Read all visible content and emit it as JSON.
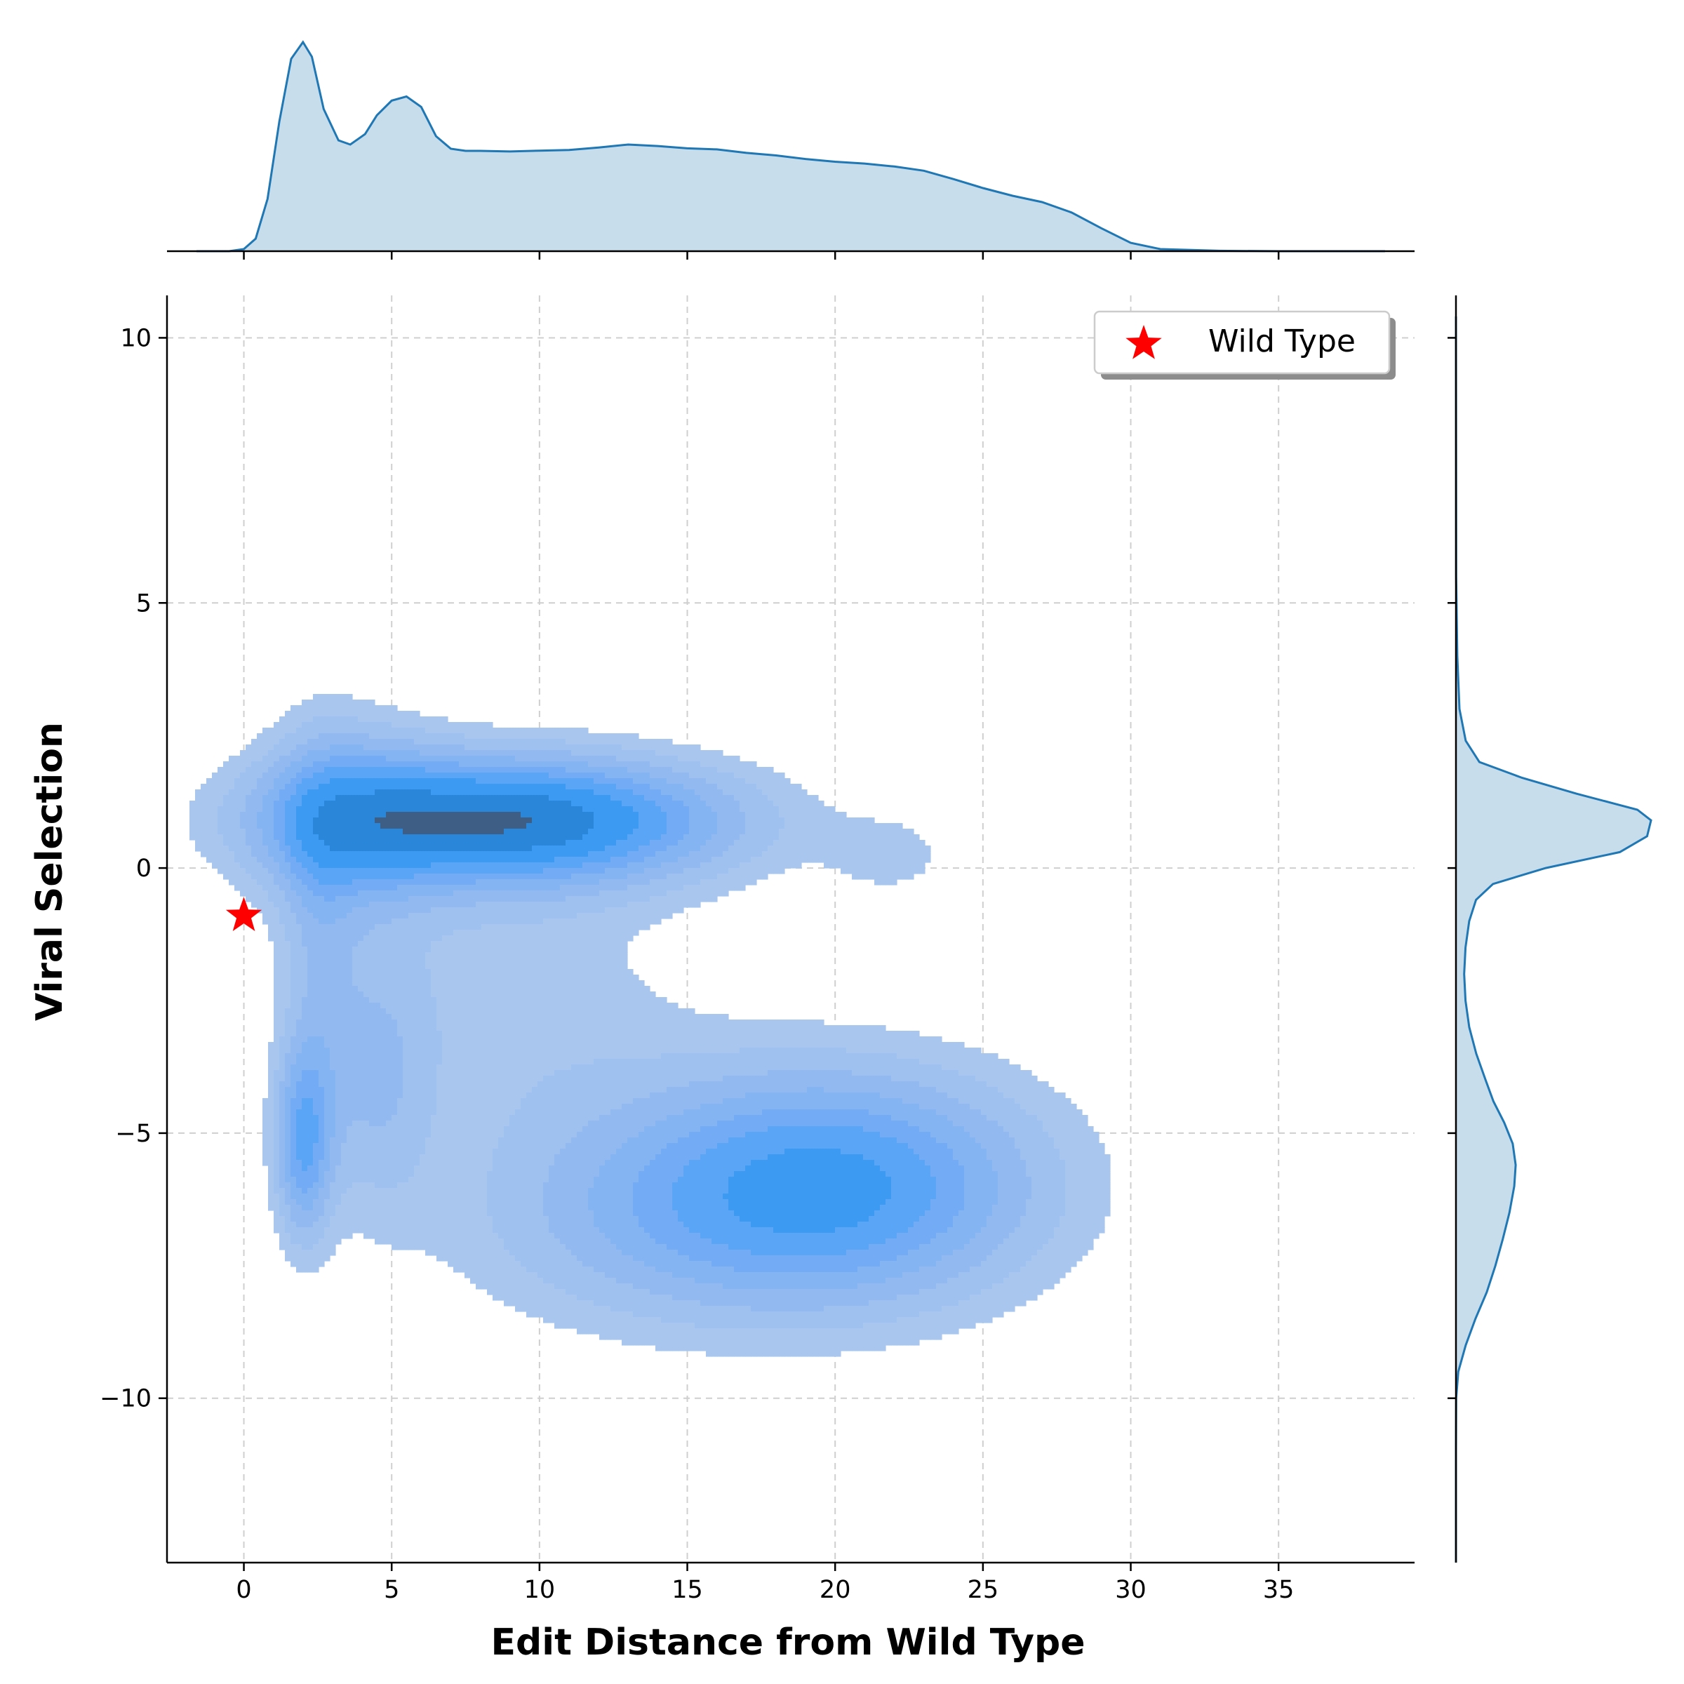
{
  "chart_data": {
    "type": "kde-joint",
    "xlabel": "Edit Distance from Wild Type",
    "ylabel": "Viral Selection",
    "xlim": [
      -2.6,
      39.6
    ],
    "ylim": [
      -13.1,
      10.8
    ],
    "x_ticks": [
      0,
      5,
      10,
      15,
      20,
      25,
      30,
      35
    ],
    "y_ticks": [
      -10,
      -5,
      0,
      5,
      10
    ],
    "x_tick_labels": [
      "0",
      "5",
      "10",
      "15",
      "20",
      "25",
      "30",
      "35"
    ],
    "y_tick_labels": [
      "−10",
      "−5",
      "0",
      "5",
      "10"
    ],
    "grid": true,
    "legend": {
      "placement": "top-right",
      "entries": [
        "Wild Type"
      ]
    },
    "wild_type_point": {
      "x": 0,
      "y": -0.9,
      "label": "Wild Type",
      "color": "#ff0000"
    },
    "kde_components": [
      {
        "x": 9,
        "y": 0.9,
        "sx": 5.2,
        "sy": 0.85,
        "w": 1.0
      },
      {
        "x": 3.5,
        "y": 1.0,
        "sx": 2.2,
        "sy": 1.4,
        "w": 0.35
      },
      {
        "x": 20,
        "y": -6.0,
        "sx": 5.0,
        "sy": 1.6,
        "w": 0.75
      },
      {
        "x": 2.0,
        "y": -5.2,
        "sx": 0.7,
        "sy": 1.3,
        "w": 0.55
      },
      {
        "x": 4.5,
        "y": -4.0,
        "sx": 1.3,
        "sy": 1.8,
        "w": 0.25
      },
      {
        "x": 9,
        "y": -2.5,
        "sx": 4.5,
        "sy": 2.2,
        "w": 0.18
      },
      {
        "x": 13,
        "y": -6.8,
        "sx": 5.0,
        "sy": 1.5,
        "w": 0.22
      },
      {
        "x": 22,
        "y": 0.2,
        "sx": 1.6,
        "sy": 0.6,
        "w": 0.15
      },
      {
        "x": 2.5,
        "y": -1.5,
        "sx": 0.9,
        "sy": 2.5,
        "w": 0.2
      }
    ],
    "x_marginal": {
      "x": [
        -1.6,
        -0.5,
        0.0,
        0.4,
        0.8,
        1.2,
        1.6,
        2.0,
        2.3,
        2.7,
        3.2,
        3.6,
        4.1,
        4.5,
        5.0,
        5.5,
        6.0,
        6.5,
        7.0,
        7.5,
        8.0,
        9.0,
        10.0,
        11.0,
        12.0,
        13.0,
        14.0,
        15.0,
        16.0,
        17.0,
        18.0,
        19.0,
        20.0,
        21.0,
        22.0,
        23.0,
        24.0,
        25.0,
        26.0,
        27.0,
        28.0,
        29.0,
        30.0,
        31.0,
        33.0,
        35.0,
        38.6
      ],
      "density": [
        0.0,
        0.0,
        0.01,
        0.06,
        0.25,
        0.62,
        0.92,
        1.0,
        0.93,
        0.68,
        0.53,
        0.51,
        0.56,
        0.65,
        0.72,
        0.74,
        0.69,
        0.55,
        0.49,
        0.48,
        0.48,
        0.477,
        0.481,
        0.484,
        0.496,
        0.51,
        0.503,
        0.492,
        0.487,
        0.47,
        0.458,
        0.441,
        0.428,
        0.419,
        0.405,
        0.385,
        0.345,
        0.302,
        0.265,
        0.235,
        0.185,
        0.11,
        0.04,
        0.01,
        0.002,
        0.0,
        0.0
      ]
    },
    "y_marginal": {
      "y": [
        -13.1,
        -11.0,
        -10.0,
        -9.5,
        -9.0,
        -8.5,
        -8.0,
        -7.5,
        -7.0,
        -6.5,
        -6.0,
        -5.6,
        -5.2,
        -4.8,
        -4.4,
        -4.0,
        -3.5,
        -3.0,
        -2.5,
        -2.0,
        -1.5,
        -1.0,
        -0.6,
        -0.3,
        0.0,
        0.3,
        0.6,
        0.9,
        1.1,
        1.4,
        1.7,
        2.0,
        2.4,
        3.0,
        4.0,
        5.5,
        10.5
      ],
      "density": [
        0.0,
        0.0,
        0.001,
        0.012,
        0.05,
        0.1,
        0.158,
        0.202,
        0.24,
        0.274,
        0.299,
        0.306,
        0.291,
        0.247,
        0.192,
        0.152,
        0.104,
        0.068,
        0.049,
        0.042,
        0.049,
        0.068,
        0.103,
        0.19,
        0.46,
        0.84,
        0.98,
        1.0,
        0.93,
        0.62,
        0.34,
        0.12,
        0.05,
        0.018,
        0.007,
        0.001,
        0.0
      ]
    }
  }
}
